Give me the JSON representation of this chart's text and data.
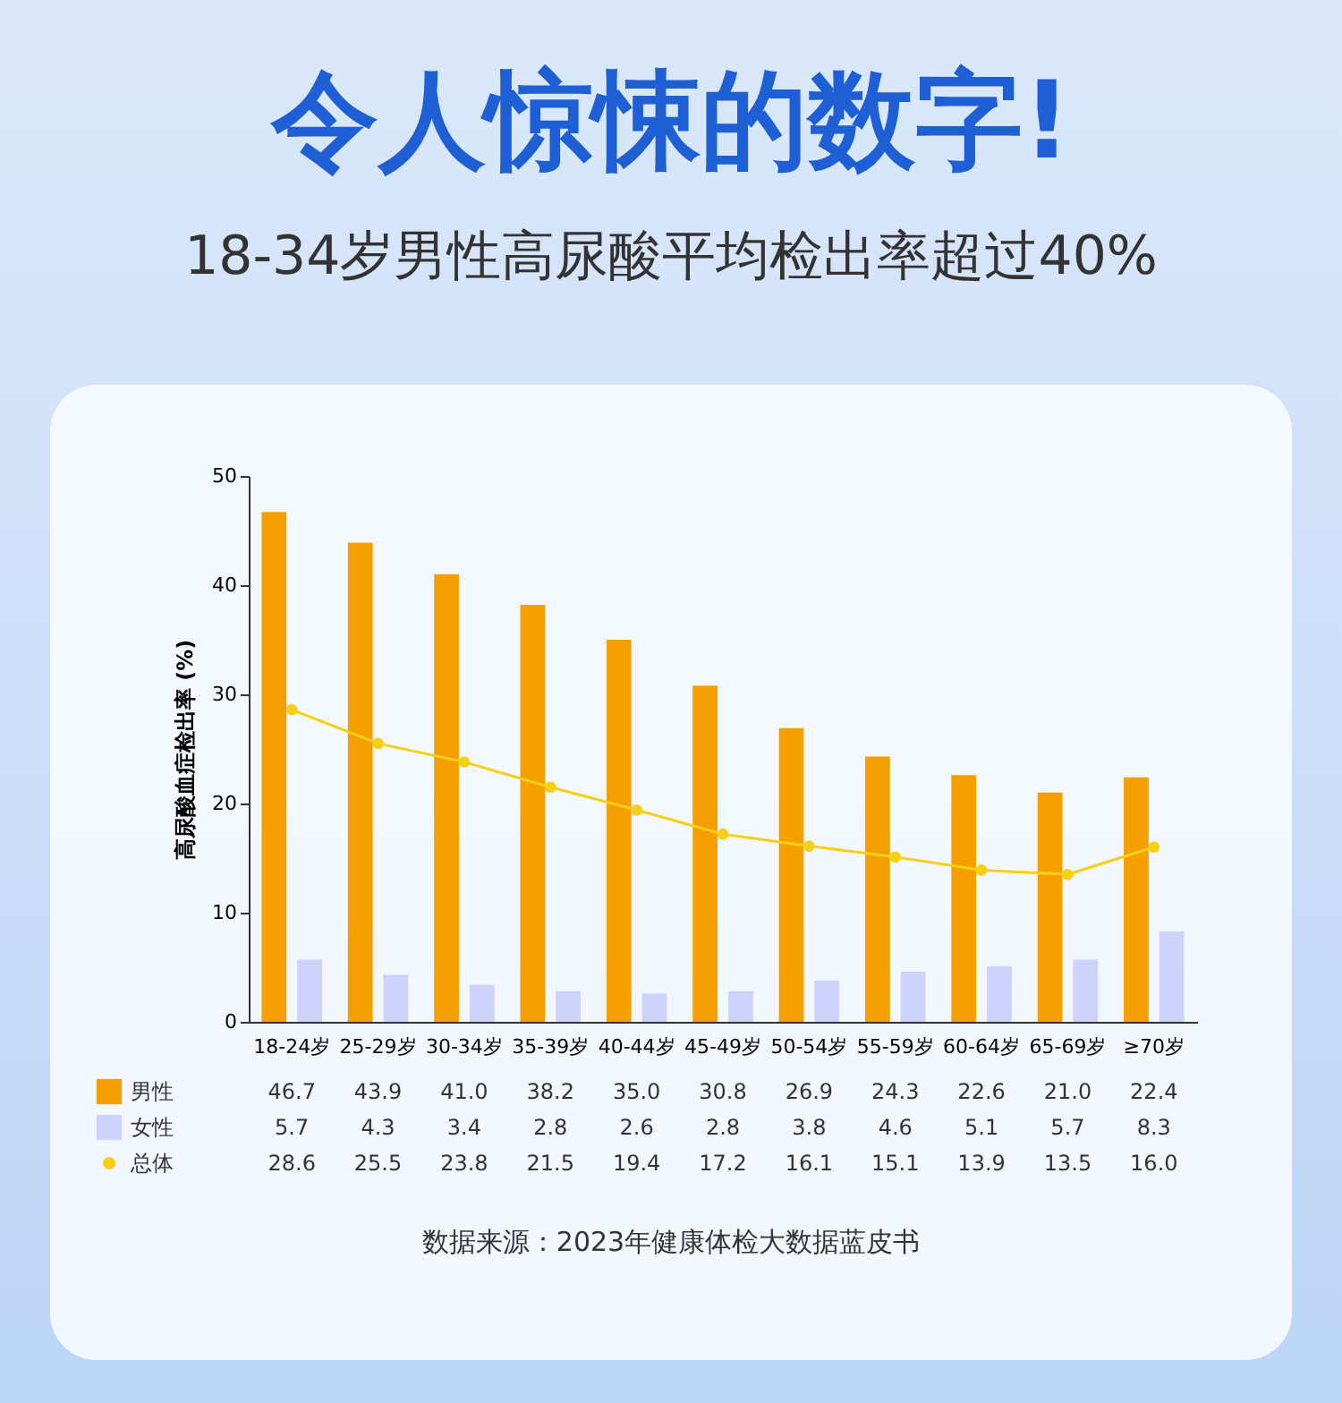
{
  "chart_data": {
    "type": "bar",
    "title": "令人惊悚的数字!",
    "subtitle": "18-34岁男性高尿酸平均检出率超过40%",
    "ylabel": "高尿酸血症检出率 (%)",
    "categories": [
      "18-24岁",
      "25-29岁",
      "30-34岁",
      "35-39岁",
      "40-44岁",
      "45-49岁",
      "50-54岁",
      "55-59岁",
      "60-64岁",
      "65-69岁",
      "≥70岁"
    ],
    "series": [
      {
        "name": "男性",
        "color": "#f5a000",
        "values": [
          46.7,
          43.9,
          41.0,
          38.2,
          35.0,
          30.8,
          26.9,
          24.3,
          22.6,
          21.0,
          22.4
        ],
        "value_labels": [
          "46.7",
          "43.9",
          "41.0",
          "38.2",
          "35.0",
          "30.8",
          "26.9",
          "24.3",
          "22.6",
          "21.0",
          "22.4"
        ]
      },
      {
        "name": "女性",
        "color": "#cdd3fb",
        "values": [
          5.7,
          4.3,
          3.4,
          2.8,
          2.6,
          2.8,
          3.8,
          4.6,
          5.1,
          5.7,
          8.3
        ],
        "value_labels": [
          "5.7",
          "4.3",
          "3.4",
          "2.8",
          "2.6",
          "2.8",
          "3.8",
          "4.6",
          "5.1",
          "5.7",
          "8.3"
        ]
      },
      {
        "name": "总体",
        "type": "line",
        "color": "#f7cf14",
        "marker": "circle",
        "values": [
          28.6,
          25.5,
          23.8,
          21.5,
          19.4,
          17.2,
          16.1,
          15.1,
          13.9,
          13.5,
          16.0
        ],
        "value_labels": [
          "28.6",
          "25.5",
          "23.8",
          "21.5",
          "19.4",
          "17.2",
          "16.1",
          "15.1",
          "13.9",
          "13.5",
          "16.0"
        ]
      }
    ],
    "ylim": [
      0,
      50
    ],
    "yticks": [
      0,
      10,
      20,
      30,
      40,
      50
    ],
    "legend": "bottom left",
    "annotations": [
      "数据来源：2023年健康体检大数据蓝皮书"
    ]
  }
}
